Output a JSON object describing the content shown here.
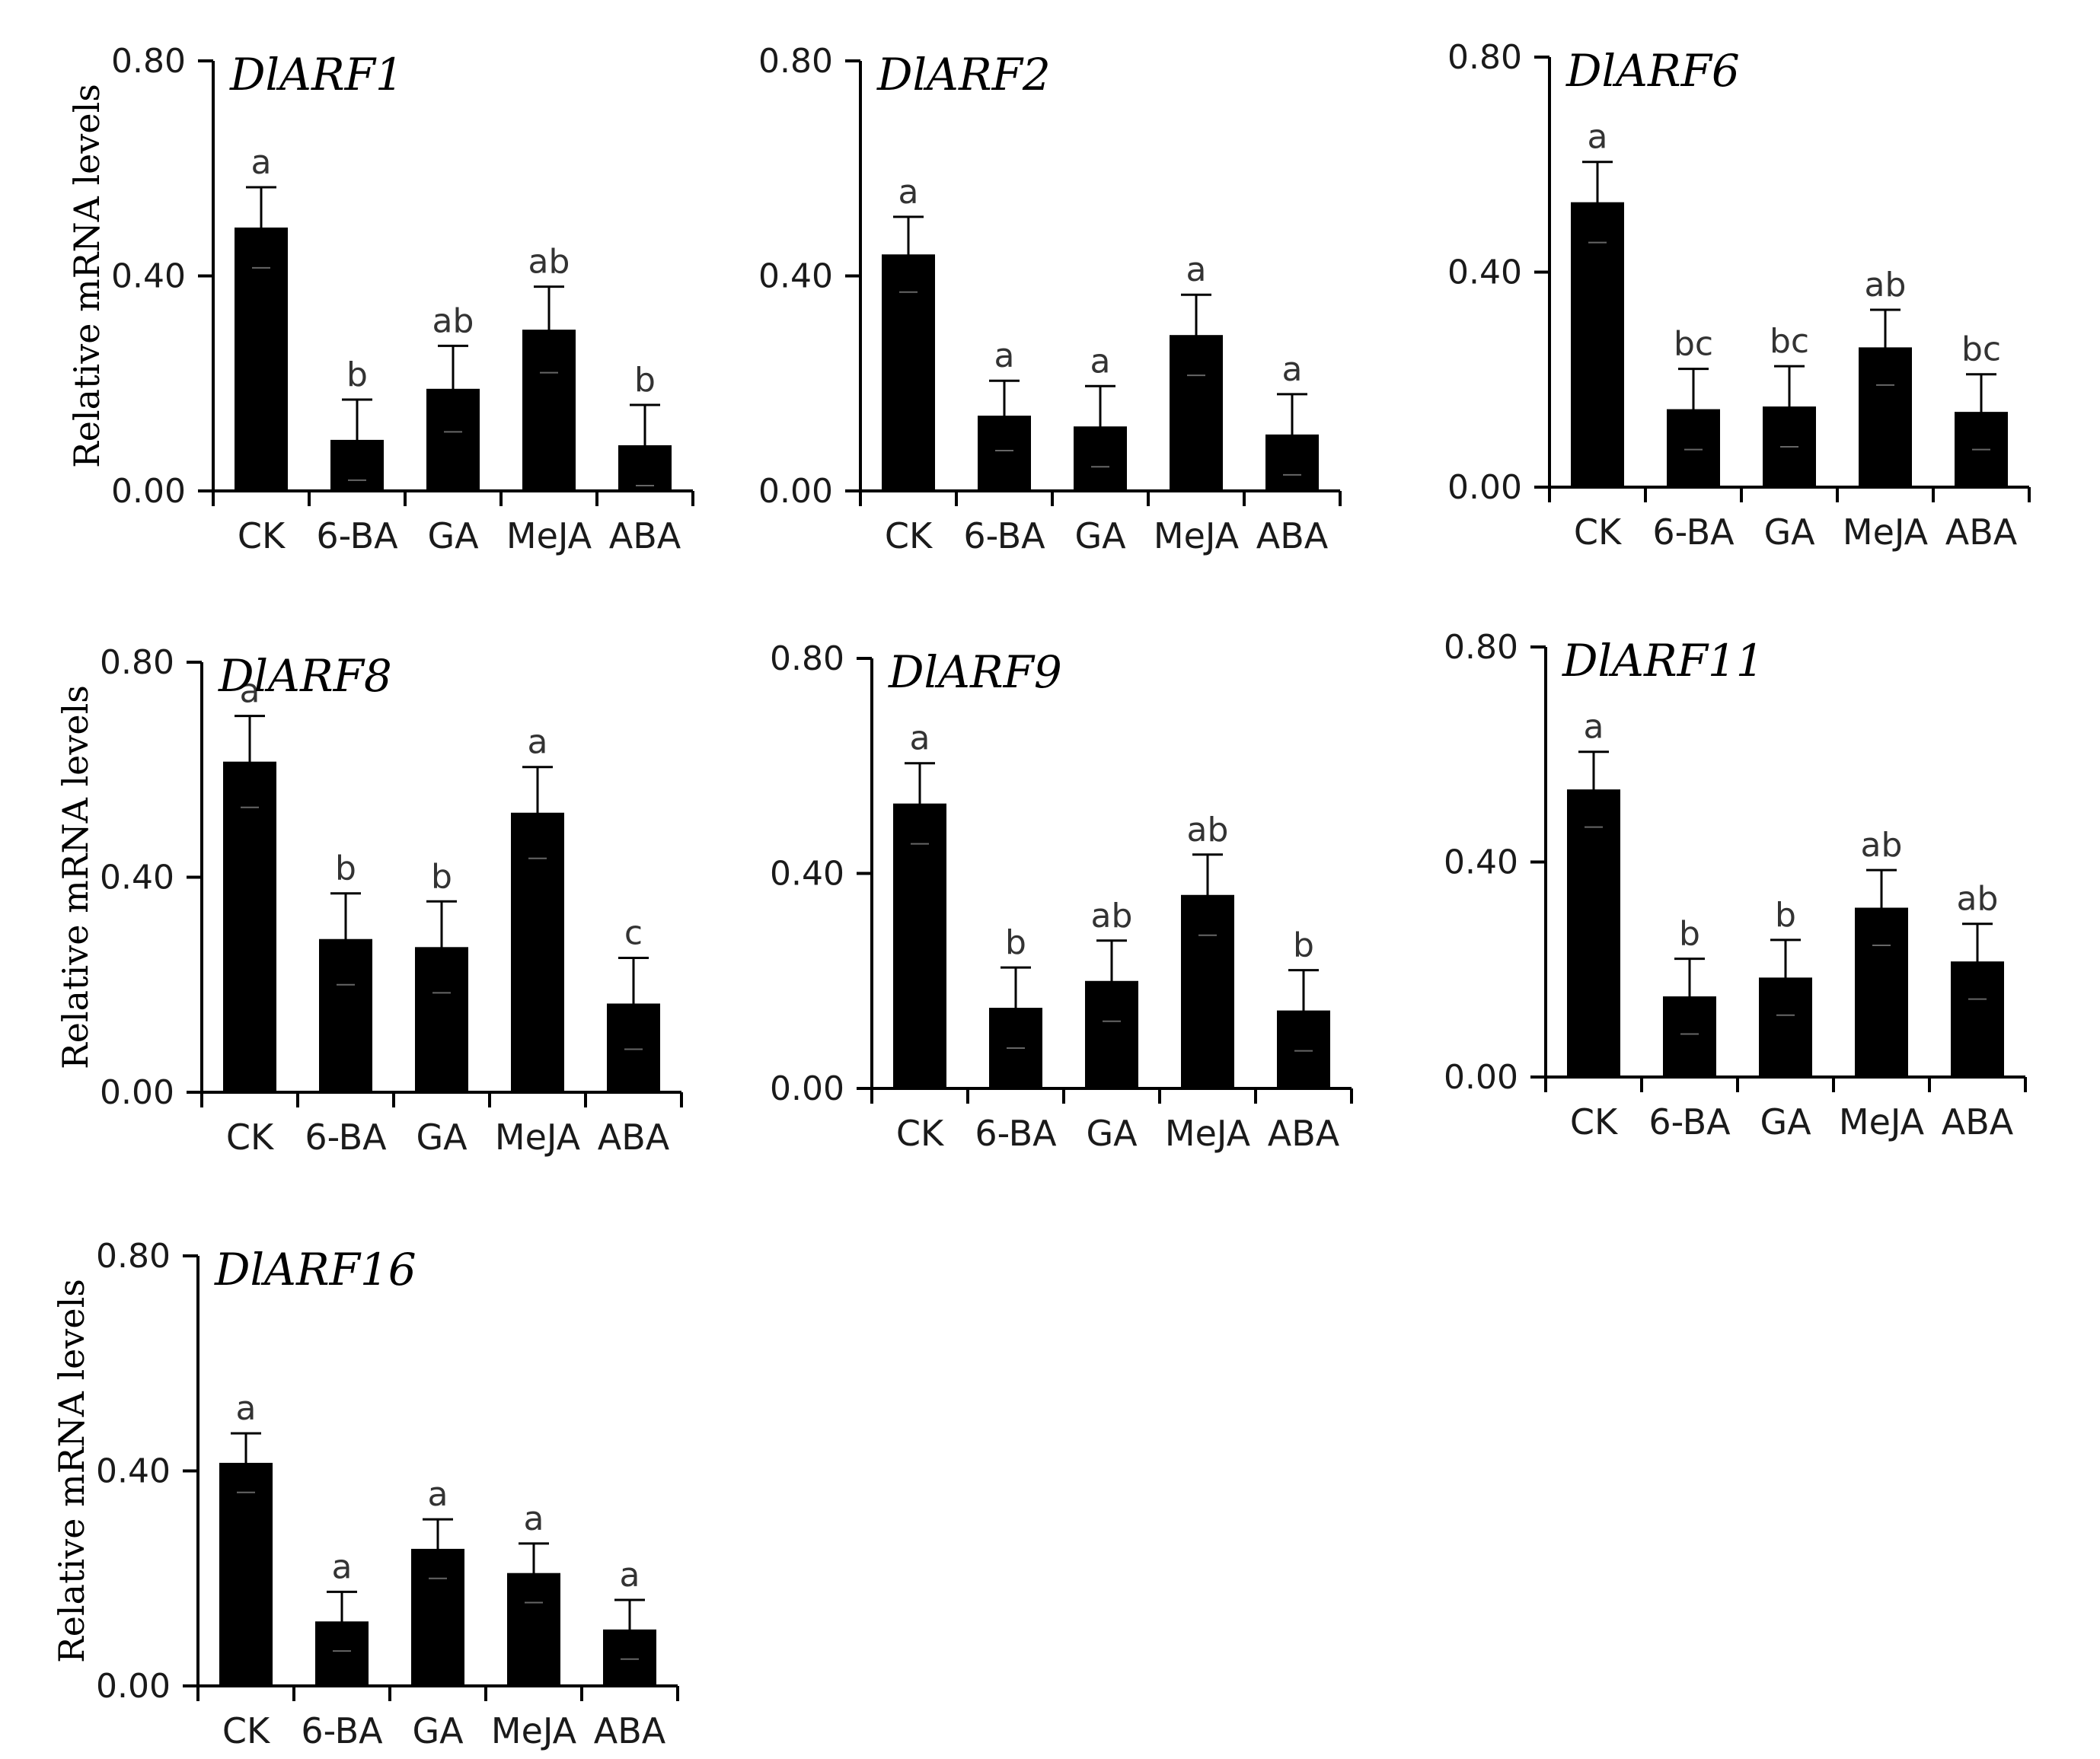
{
  "chart_data": [
    {
      "type": "bar",
      "title": "DlARF1",
      "ylabel": "Relative mRNA levels",
      "xlabel": "",
      "ylim": [
        0,
        0.8
      ],
      "yticks": [
        "0.00",
        "0.40",
        "0.80"
      ],
      "categories": [
        "CK",
        "6-BA",
        "GA",
        "MeJA",
        "ABA"
      ],
      "values": [
        0.49,
        0.095,
        0.19,
        0.3,
        0.085
      ],
      "errors": [
        0.075,
        0.075,
        0.08,
        0.08,
        0.075
      ],
      "letters": [
        "a",
        "b",
        "ab",
        "ab",
        "b"
      ]
    },
    {
      "type": "bar",
      "title": "DlARF2",
      "ylabel": "",
      "xlabel": "",
      "ylim": [
        0,
        0.8
      ],
      "yticks": [
        "0.00",
        "0.40",
        "0.80"
      ],
      "categories": [
        "CK",
        "6-BA",
        "GA",
        "MeJA",
        "ABA"
      ],
      "values": [
        0.44,
        0.14,
        0.12,
        0.29,
        0.105
      ],
      "errors": [
        0.07,
        0.065,
        0.075,
        0.075,
        0.075
      ],
      "letters": [
        "a",
        "a",
        "a",
        "a",
        "a"
      ]
    },
    {
      "type": "bar",
      "title": "DlARF6",
      "ylabel": "",
      "xlabel": "",
      "ylim": [
        0,
        0.8
      ],
      "yticks": [
        "0.00",
        "0.40",
        "0.80"
      ],
      "categories": [
        "CK",
        "6-BA",
        "GA",
        "MeJA",
        "ABA"
      ],
      "values": [
        0.53,
        0.145,
        0.15,
        0.26,
        0.14
      ],
      "errors": [
        0.075,
        0.075,
        0.075,
        0.07,
        0.07
      ],
      "letters": [
        "a",
        "bc",
        "bc",
        "ab",
        "bc"
      ]
    },
    {
      "type": "bar",
      "title": "DlARF8",
      "ylabel": "Relative mRNA levels",
      "xlabel": "",
      "ylim": [
        0,
        0.8
      ],
      "yticks": [
        "0.00",
        "0.40",
        "0.80"
      ],
      "categories": [
        "CK",
        "6-BA",
        "GA",
        "MeJA",
        "ABA"
      ],
      "values": [
        0.615,
        0.285,
        0.27,
        0.52,
        0.165
      ],
      "errors": [
        0.085,
        0.085,
        0.085,
        0.085,
        0.085
      ],
      "letters": [
        "a",
        "b",
        "b",
        "a",
        "c"
      ]
    },
    {
      "type": "bar",
      "title": "DlARF9",
      "ylabel": "",
      "xlabel": "",
      "ylim": [
        0,
        0.8
      ],
      "yticks": [
        "0.00",
        "0.40",
        "0.80"
      ],
      "categories": [
        "CK",
        "6-BA",
        "GA",
        "MeJA",
        "ABA"
      ],
      "values": [
        0.53,
        0.15,
        0.2,
        0.36,
        0.145
      ],
      "errors": [
        0.075,
        0.075,
        0.075,
        0.075,
        0.075
      ],
      "letters": [
        "a",
        "b",
        "ab",
        "ab",
        "b"
      ]
    },
    {
      "type": "bar",
      "title": "DlARF11",
      "ylabel": "",
      "xlabel": "",
      "ylim": [
        0,
        0.8
      ],
      "yticks": [
        "0.00",
        "0.40",
        "0.80"
      ],
      "categories": [
        "CK",
        "6-BA",
        "GA",
        "MeJA",
        "ABA"
      ],
      "values": [
        0.535,
        0.15,
        0.185,
        0.315,
        0.215
      ],
      "errors": [
        0.07,
        0.07,
        0.07,
        0.07,
        0.07
      ],
      "letters": [
        "a",
        "b",
        "b",
        "ab",
        "ab"
      ]
    },
    {
      "type": "bar",
      "title": "DlARF16",
      "ylabel": "Relative mRNA levels",
      "xlabel": "",
      "ylim": [
        0,
        0.8
      ],
      "yticks": [
        "0.00",
        "0.40",
        "0.80"
      ],
      "categories": [
        "CK",
        "6-BA",
        "GA",
        "MeJA",
        "ABA"
      ],
      "values": [
        0.415,
        0.12,
        0.255,
        0.21,
        0.105
      ],
      "errors": [
        0.055,
        0.055,
        0.055,
        0.055,
        0.055
      ],
      "letters": [
        "a",
        "a",
        "a",
        "a",
        "a"
      ]
    }
  ]
}
